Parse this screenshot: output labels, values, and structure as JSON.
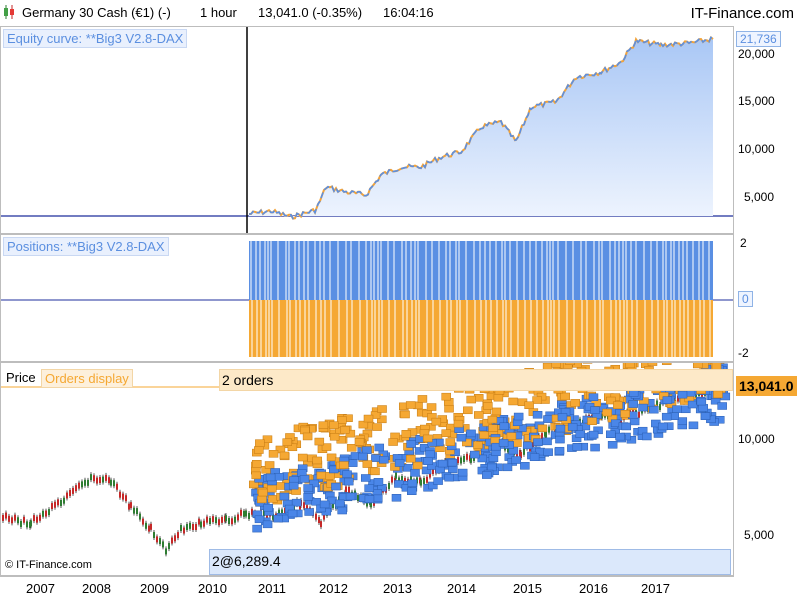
{
  "header": {
    "symbol": "Germany 30 Cash (€1) (-)",
    "timeframe": "1 hour",
    "price_change": "13,041.0 (-0.35%)",
    "time": "16:04:16",
    "brand": "IT-Finance.com"
  },
  "equity_panel": {
    "label": "Equity curve: **Big3 V2.8-DAX",
    "current_value": "21,736",
    "ticks": [
      "20,000",
      "15,000",
      "10,000",
      "5,000"
    ],
    "colors": {
      "fill": "#a9c7f5",
      "line": "#5a8fe3",
      "up": "#f2a33a",
      "base": "#1f2f9c"
    }
  },
  "positions_panel": {
    "label": "Positions: **Big3 V2.8-DAX",
    "ticks": [
      "2",
      "0",
      "-2"
    ],
    "colors": {
      "long": "#5a8fe3",
      "short": "#f5a833"
    }
  },
  "price_panel": {
    "price_label": "Price",
    "orders_label": "Orders display",
    "orders_banner": "2 orders",
    "current_price": "13,041.0",
    "bottom_banner": "2@6,289.4",
    "ticks": [
      "10,000",
      "5,000"
    ],
    "watermark": "© IT-Finance.com",
    "colors": {
      "buy": "#4a86e8",
      "sell": "#f5a833",
      "price_line": "#2b2b2b"
    }
  },
  "xaxis": {
    "years": [
      "2007",
      "2008",
      "2009",
      "2010",
      "2011",
      "2012",
      "2013",
      "2014",
      "2015",
      "2016",
      "2017"
    ]
  }
}
